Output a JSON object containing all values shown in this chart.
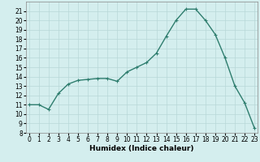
{
  "x": [
    0,
    1,
    2,
    3,
    4,
    5,
    6,
    7,
    8,
    9,
    10,
    11,
    12,
    13,
    14,
    15,
    16,
    17,
    18,
    19,
    20,
    21,
    22,
    23
  ],
  "y": [
    11,
    11,
    10.5,
    12.2,
    13.2,
    13.6,
    13.7,
    13.8,
    13.8,
    13.5,
    14.5,
    15,
    15.5,
    16.5,
    18.3,
    20,
    21.2,
    21.2,
    20,
    18.5,
    16,
    13,
    11.2,
    8.5
  ],
  "xlabel": "Humidex (Indice chaleur)",
  "ylim": [
    8,
    22
  ],
  "xlim": [
    -0.3,
    23.3
  ],
  "yticks": [
    8,
    9,
    10,
    11,
    12,
    13,
    14,
    15,
    16,
    17,
    18,
    19,
    20,
    21
  ],
  "xticks": [
    0,
    1,
    2,
    3,
    4,
    5,
    6,
    7,
    8,
    9,
    10,
    11,
    12,
    13,
    14,
    15,
    16,
    17,
    18,
    19,
    20,
    21,
    22,
    23
  ],
  "line_color": "#2e7d6e",
  "bg_color": "#d4eeee",
  "grid_color": "#b8d8d8",
  "label_fontsize": 6.5,
  "tick_fontsize": 5.5
}
